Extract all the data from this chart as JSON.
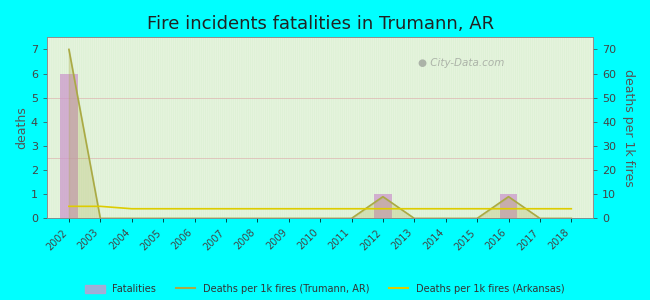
{
  "title": "Fire incidents fatalities in Trumann, AR",
  "years": [
    2002,
    2003,
    2004,
    2005,
    2006,
    2007,
    2008,
    2009,
    2010,
    2011,
    2012,
    2013,
    2014,
    2015,
    2016,
    2017,
    2018
  ],
  "fatalities": [
    6,
    0,
    0,
    0,
    0,
    0,
    0,
    0,
    0,
    0,
    1,
    0,
    0,
    0,
    1,
    0,
    0
  ],
  "deaths_per_1k_trumann": [
    70,
    0,
    0,
    0,
    0,
    0,
    0,
    0,
    0,
    0,
    9,
    0,
    0,
    0,
    9,
    0,
    0
  ],
  "deaths_per_1k_arkansas": [
    5,
    5,
    4,
    4,
    4,
    4,
    4,
    4,
    4,
    4,
    4,
    4,
    4,
    4,
    4,
    4,
    4
  ],
  "ylim_left": [
    0,
    7.5
  ],
  "ylim_right": [
    0,
    75
  ],
  "bg_color": "#00ffff",
  "plot_bg_top": "#d4edcc",
  "plot_bg_bottom": "#f0f8e8",
  "bar_color": "#cc99cc",
  "bar_alpha": 0.75,
  "trumann_line_color": "#aaaa44",
  "arkansas_line_color": "#ddcc00",
  "watermark": "City-Data.com",
  "ylabel_left": "deaths",
  "ylabel_right": "deaths per 1k fires",
  "legend_fatalities": "Fatalities",
  "legend_trumann": "Deaths per 1k fires (Trumann, AR)",
  "legend_arkansas": "Deaths per 1k fires (Arkansas)"
}
